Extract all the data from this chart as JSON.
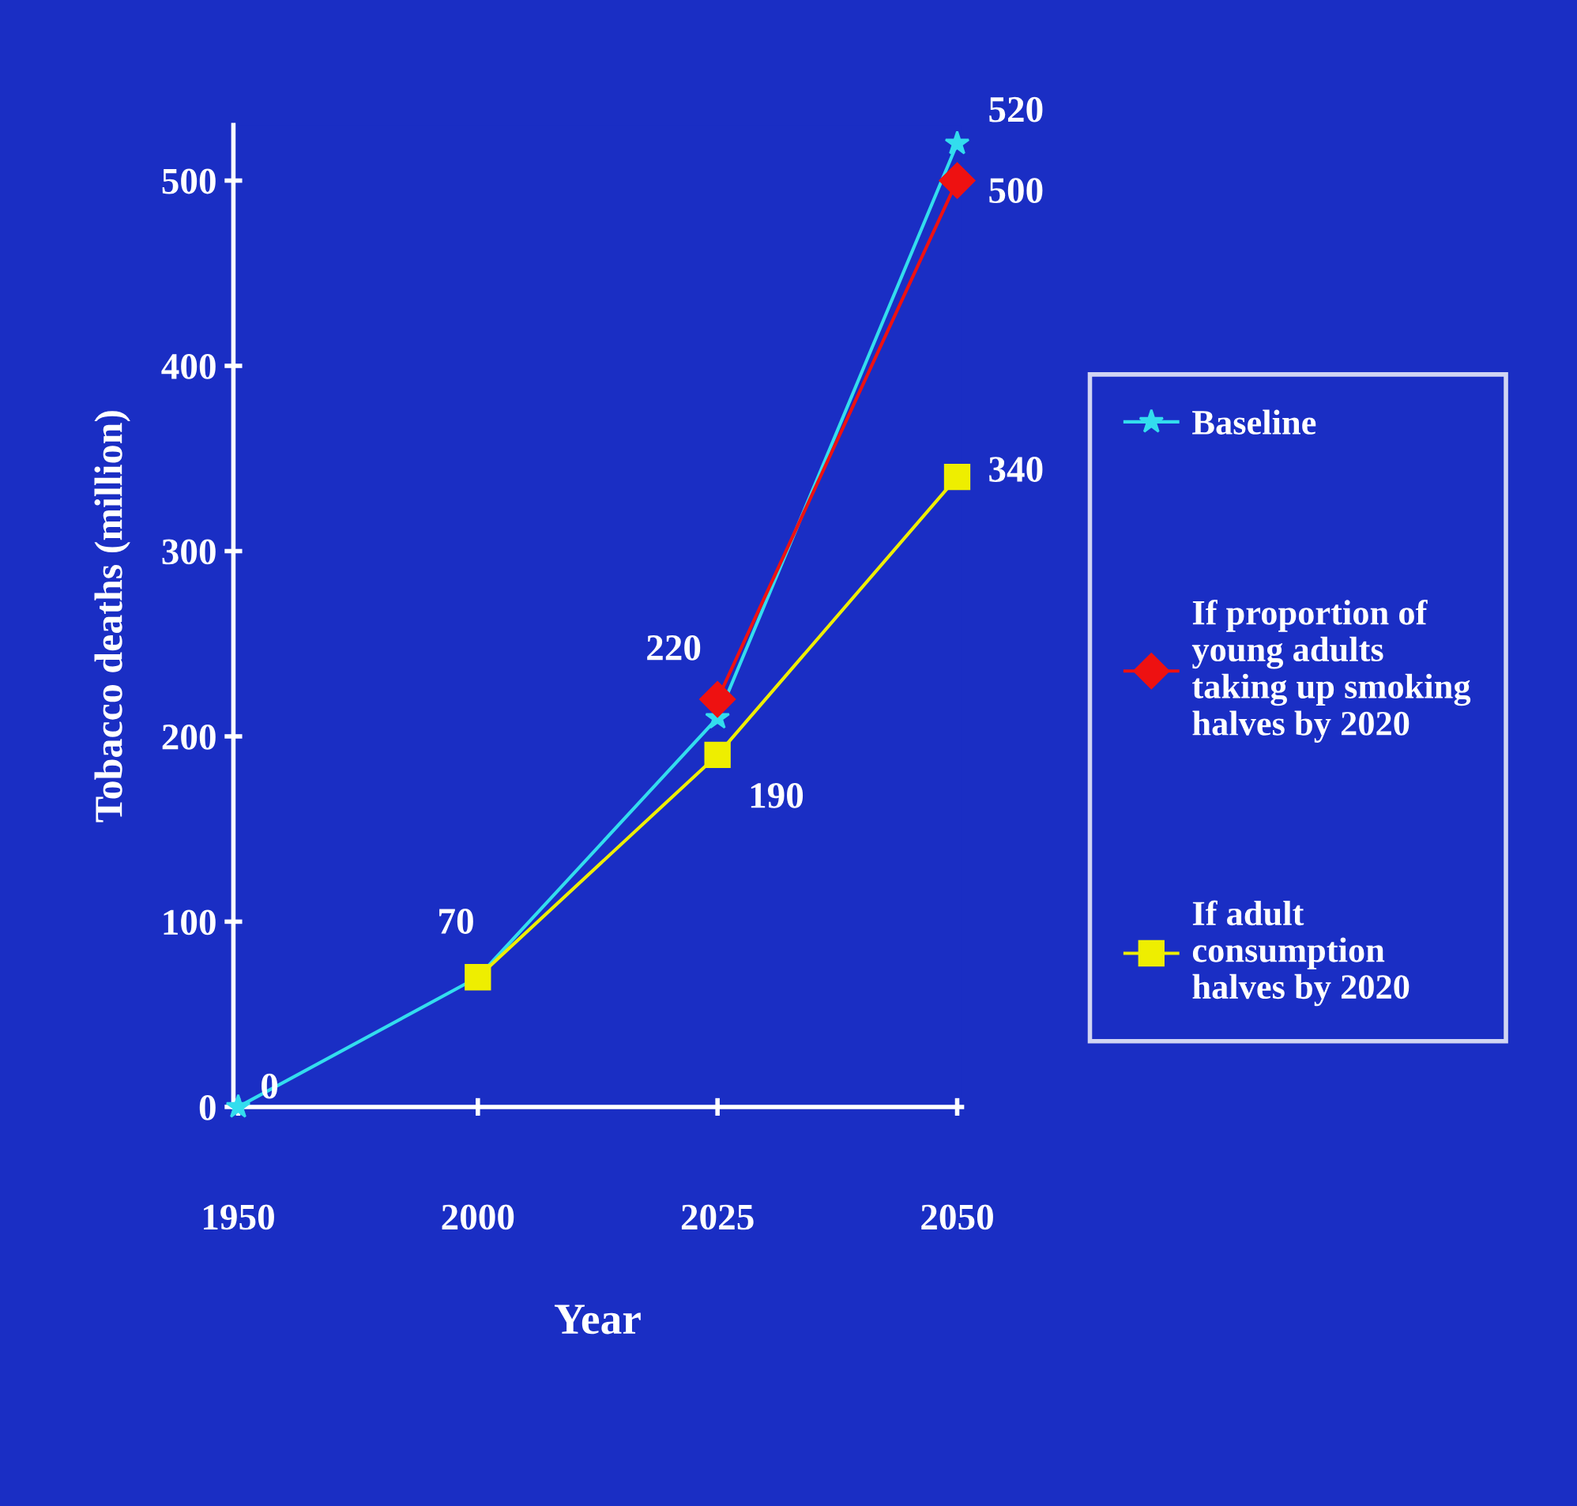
{
  "chart_data": {
    "type": "line",
    "xlabel": "Year",
    "ylabel": "Tobacco deaths (million)",
    "categories": [
      "1950",
      "2000",
      "2025",
      "2050"
    ],
    "series": [
      {
        "name": "Baseline",
        "color": "#33ddee",
        "marker": "star",
        "values": [
          0,
          70,
          210,
          520
        ],
        "value_labels": [
          "0",
          "70",
          null,
          "520"
        ]
      },
      {
        "name": "If proportion of\nyoung adults\ntaking up smoking\nhalves by 2020",
        "color": "#ee1111",
        "marker": "diamond",
        "values": [
          null,
          null,
          220,
          500
        ],
        "value_labels": [
          null,
          null,
          "220",
          "500"
        ]
      },
      {
        "name": "If adult\nconsumption\nhalves by 2020",
        "color": "#eeee00",
        "marker": "square",
        "values": [
          null,
          70,
          190,
          340
        ],
        "value_labels": [
          null,
          null,
          "190",
          "340"
        ]
      }
    ],
    "ylim": [
      0,
      530
    ],
    "yticks": [
      0,
      100,
      200,
      300,
      400,
      500
    ],
    "grid": false,
    "legend": "right",
    "line_style": "solid"
  }
}
